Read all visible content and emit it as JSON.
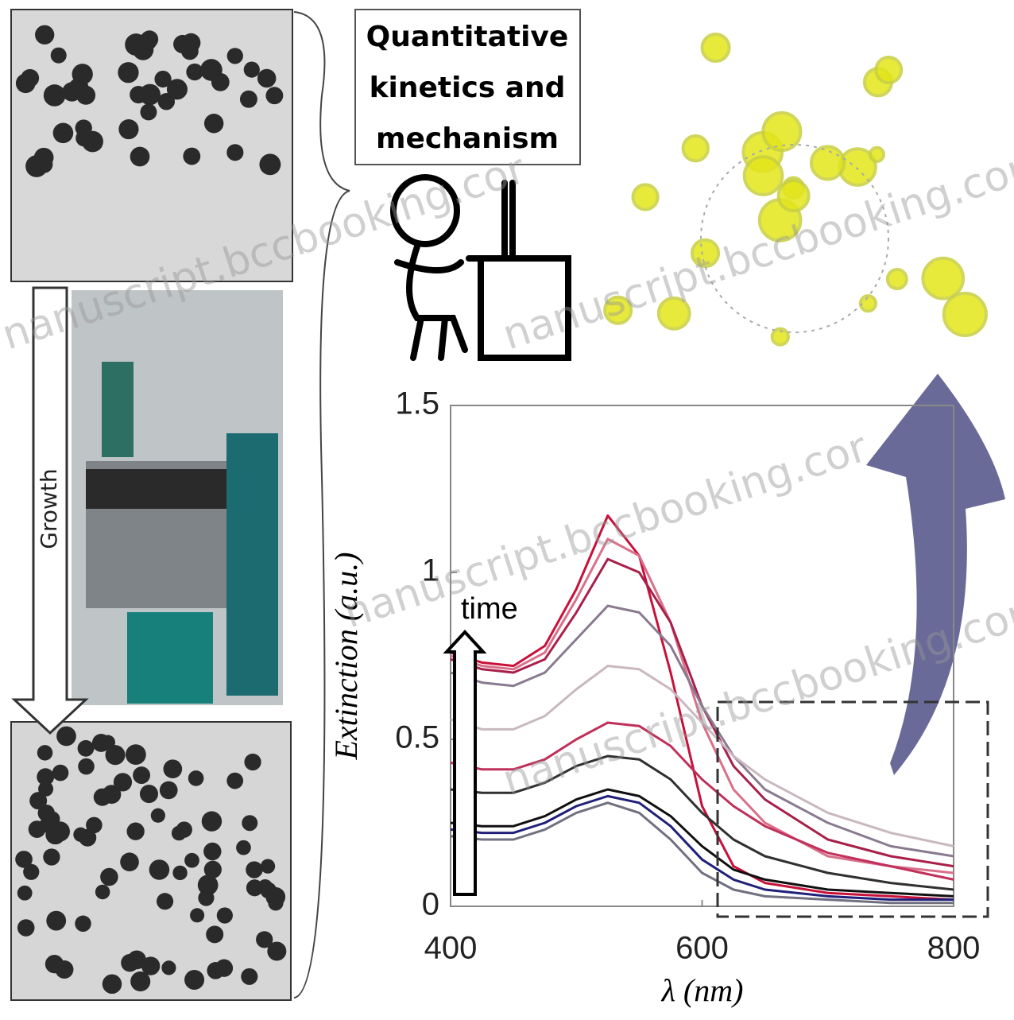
{
  "callout": {
    "lines": [
      "Quantitative",
      "kinetics and",
      "mechanism"
    ]
  },
  "growth_label": "Growth",
  "watermarks": [
    "nanuscript.bccbooking.cor",
    "nanuscript.bccbooking.cor",
    "nanuscript.bccbooking.cor",
    "nanuscript.bccbooking.cor"
  ],
  "chart_data": {
    "type": "line",
    "xlabel": "λ (nm)",
    "ylabel": "Extinction (a.u.)",
    "annotation": "time",
    "x": [
      400,
      425,
      450,
      475,
      500,
      525,
      550,
      575,
      600,
      625,
      650,
      700,
      750,
      800
    ],
    "xlim": [
      400,
      800
    ],
    "xticks": [
      400,
      600,
      800
    ],
    "ylim": [
      0,
      1.5
    ],
    "yticks": [
      0,
      0.5,
      1,
      1.5
    ],
    "series": [
      {
        "color": "#c8103a",
        "values": [
          0.76,
          0.73,
          0.72,
          0.78,
          0.95,
          1.17,
          1.05,
          0.7,
          0.3,
          0.12,
          0.07,
          0.04,
          0.03,
          0.02
        ]
      },
      {
        "color": "#d9708a",
        "values": [
          0.75,
          0.72,
          0.71,
          0.76,
          0.92,
          1.1,
          1.05,
          0.85,
          0.55,
          0.35,
          0.25,
          0.15,
          0.12,
          0.1
        ]
      },
      {
        "color": "#a8204a",
        "values": [
          0.74,
          0.71,
          0.7,
          0.74,
          0.88,
          1.04,
          1.0,
          0.85,
          0.6,
          0.42,
          0.32,
          0.2,
          0.15,
          0.12
        ]
      },
      {
        "color": "#8a7a90",
        "values": [
          0.7,
          0.67,
          0.66,
          0.7,
          0.8,
          0.9,
          0.88,
          0.78,
          0.6,
          0.45,
          0.35,
          0.25,
          0.18,
          0.15
        ]
      },
      {
        "color": "#c9b8c0",
        "values": [
          0.56,
          0.53,
          0.53,
          0.57,
          0.65,
          0.72,
          0.71,
          0.65,
          0.55,
          0.45,
          0.38,
          0.28,
          0.22,
          0.18
        ]
      },
      {
        "color": "#c0305a",
        "values": [
          0.43,
          0.41,
          0.41,
          0.44,
          0.5,
          0.55,
          0.54,
          0.48,
          0.38,
          0.3,
          0.24,
          0.16,
          0.12,
          0.08
        ]
      },
      {
        "color": "#303030",
        "values": [
          0.35,
          0.34,
          0.34,
          0.37,
          0.42,
          0.45,
          0.44,
          0.38,
          0.28,
          0.2,
          0.15,
          0.1,
          0.07,
          0.05
        ]
      },
      {
        "color": "#101010",
        "values": [
          0.25,
          0.24,
          0.24,
          0.27,
          0.32,
          0.35,
          0.33,
          0.27,
          0.18,
          0.11,
          0.08,
          0.05,
          0.04,
          0.03
        ]
      },
      {
        "color": "#20207a",
        "values": [
          0.23,
          0.22,
          0.22,
          0.25,
          0.3,
          0.33,
          0.31,
          0.24,
          0.14,
          0.08,
          0.05,
          0.03,
          0.02,
          0.02
        ]
      },
      {
        "color": "#707080",
        "values": [
          0.21,
          0.2,
          0.2,
          0.23,
          0.28,
          0.31,
          0.28,
          0.2,
          0.1,
          0.05,
          0.03,
          0.02,
          0.01,
          0.01
        ]
      }
    ]
  }
}
